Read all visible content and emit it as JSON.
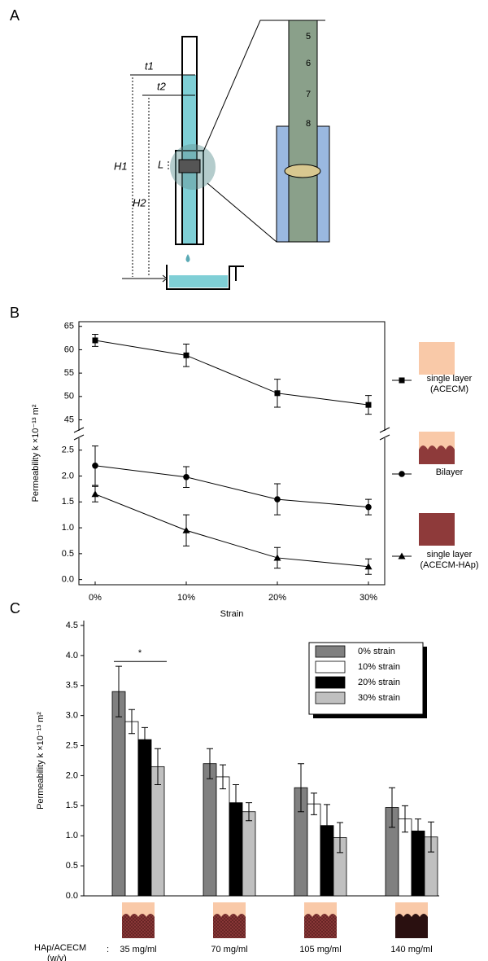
{
  "panel_labels": [
    "A",
    "B",
    "C"
  ],
  "diagram": {
    "labels": [
      "t1",
      "t2",
      "H1",
      "H2",
      "L"
    ],
    "scale_marks": [
      "5",
      "6",
      "7",
      "8"
    ]
  },
  "chart_data": [
    {
      "type": "line",
      "ylabel": "Permeability  k ×10⁻¹³ m²",
      "xlabel": "Strain",
      "categories": [
        "0%",
        "10%",
        "20%",
        "30%"
      ],
      "ylim": [
        -0.1,
        2.7
      ],
      "yticks": [
        {
          "value": 0,
          "label": "0.0"
        },
        {
          "value": 0.5,
          "label": "0.5"
        },
        {
          "value": 1,
          "label": "1.0"
        },
        {
          "value": 1.5,
          "label": "1.5"
        },
        {
          "value": 2,
          "label": "2.0"
        },
        {
          "value": 2.5,
          "label": "2.5"
        }
      ],
      "ylim_upper": [
        43,
        66
      ],
      "yticks_upper": [
        45,
        50,
        55,
        60,
        65
      ],
      "axis_break": true,
      "series": [
        {
          "name": "single layer (ACECM)",
          "color": "#000000",
          "marker": "square",
          "axis": "upper",
          "values": [
            62.0,
            58.8,
            50.7,
            48.2
          ],
          "errors": [
            1.3,
            2.4,
            3.0,
            2.0
          ]
        },
        {
          "name": "Bilayer",
          "color": "#000000",
          "marker": "circle",
          "values": [
            2.2,
            1.98,
            1.55,
            1.4
          ],
          "errors": [
            0.38,
            0.2,
            0.3,
            0.15
          ]
        },
        {
          "name": "single layer (ACECM-HAp)",
          "color": "#000000",
          "marker": "triangle",
          "values": [
            1.65,
            0.95,
            0.42,
            0.25
          ],
          "errors": [
            0.15,
            0.3,
            0.2,
            0.15
          ]
        }
      ]
    },
    {
      "type": "bar",
      "ylabel": "Permeability  k ×10⁻¹³ m²",
      "xlabel": "HAp/ACECM",
      "xlabel_unit": "(w/v)",
      "separator": ":",
      "categories": [
        "35 mg/ml",
        "70 mg/ml",
        "105 mg/ml",
        "140 mg/ml"
      ],
      "ylim": [
        0,
        4.5
      ],
      "yticks": [
        {
          "value": 0,
          "label": "0.0"
        },
        {
          "value": 0.5,
          "label": "0.5"
        },
        {
          "value": 1,
          "label": "1.0"
        },
        {
          "value": 1.5,
          "label": "1.5"
        },
        {
          "value": 2,
          "label": "2.0"
        },
        {
          "value": 2.5,
          "label": "2.5"
        },
        {
          "value": 3,
          "label": "3.0"
        },
        {
          "value": 3.5,
          "label": "3.5"
        },
        {
          "value": 4,
          "label": "4.0"
        },
        {
          "value": 4.5,
          "label": "4.5"
        }
      ],
      "annotation": "*",
      "series": [
        {
          "name": "0%  strain",
          "color": "#808080",
          "values": [
            3.4,
            2.2,
            1.8,
            1.47
          ],
          "errors": [
            0.42,
            0.25,
            0.4,
            0.33
          ]
        },
        {
          "name": "10%  strain",
          "color": "#ffffff",
          "values": [
            2.9,
            1.98,
            1.53,
            1.28
          ],
          "errors": [
            0.2,
            0.2,
            0.18,
            0.22
          ]
        },
        {
          "name": "20%  strain",
          "color": "#000000",
          "values": [
            2.6,
            1.55,
            1.17,
            1.08
          ],
          "errors": [
            0.2,
            0.3,
            0.35,
            0.2
          ]
        },
        {
          "name": "30%  strain",
          "color": "#c0c0c0",
          "values": [
            2.15,
            1.4,
            0.97,
            0.98
          ],
          "errors": [
            0.3,
            0.15,
            0.25,
            0.25
          ]
        }
      ]
    }
  ]
}
